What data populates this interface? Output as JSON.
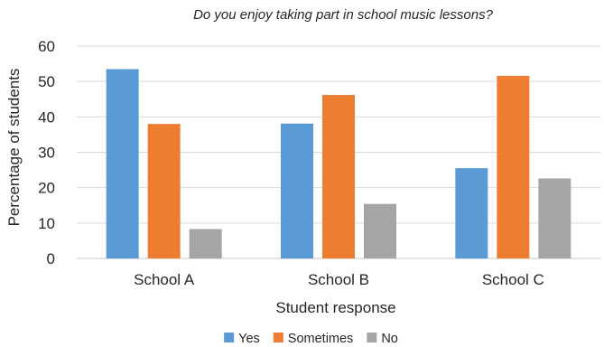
{
  "chart_data": {
    "type": "bar",
    "title": "Do you enjoy taking part in school music lessons?",
    "xlabel": "Student response",
    "ylabel": "Percentage of students",
    "categories": [
      "School A",
      "School B",
      "School C"
    ],
    "series": [
      {
        "name": "Yes",
        "values": [
          53.5,
          38.1,
          25.5
        ]
      },
      {
        "name": "Sometimes",
        "values": [
          38,
          46.2,
          51.6
        ]
      },
      {
        "name": "No",
        "values": [
          8.3,
          15.4,
          22.6
        ]
      }
    ],
    "ylim": [
      0,
      60
    ],
    "yticks": [
      0,
      10,
      20,
      30,
      40,
      50,
      60
    ],
    "grid": true,
    "legend": "bottom",
    "colors": [
      "#5b9bd5",
      "#ed7d31",
      "#a5a5a5"
    ]
  }
}
